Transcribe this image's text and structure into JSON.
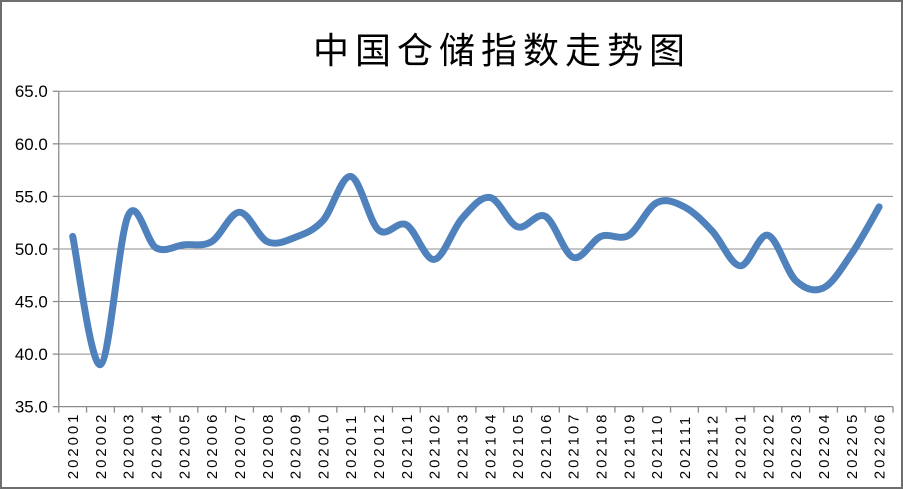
{
  "chart_data": {
    "type": "line",
    "title": "中国仓储指数走势图",
    "xlabel": "",
    "ylabel": "",
    "categories": [
      "202001",
      "202002",
      "202003",
      "202004",
      "202005",
      "202006",
      "202007",
      "202008",
      "202009",
      "202010",
      "202011",
      "202012",
      "202101",
      "202102",
      "202103",
      "202104",
      "202105",
      "202106",
      "202107",
      "202108",
      "202109",
      "202110",
      "202111",
      "202112",
      "202201",
      "202202",
      "202203",
      "202204",
      "202205",
      "202206"
    ],
    "values": [
      51.2,
      39.0,
      53.2,
      50.1,
      50.4,
      50.7,
      53.5,
      50.7,
      51.1,
      52.7,
      56.9,
      51.8,
      52.3,
      49.0,
      52.9,
      54.9,
      52.1,
      53.1,
      49.2,
      51.2,
      51.3,
      54.4,
      54.0,
      51.7,
      48.4,
      51.3,
      47.0,
      46.3,
      49.5,
      54.0
    ],
    "ylim": [
      35.0,
      65.0
    ],
    "ytick_step": 5.0,
    "ytick_labels": [
      "65.0",
      "60.0",
      "55.0",
      "50.0",
      "45.0",
      "40.0",
      "35.0"
    ],
    "grid": true,
    "legend": "none",
    "line_color": "#4F81BD",
    "axis_color": "#8C8C8C"
  }
}
